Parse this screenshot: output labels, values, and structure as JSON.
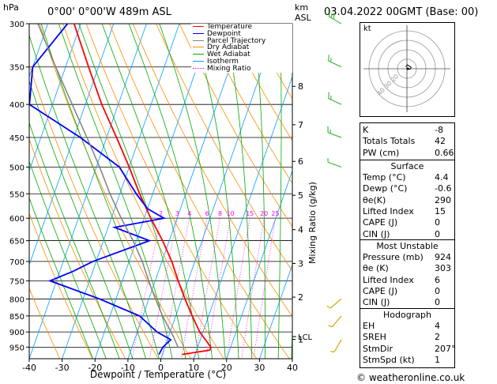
{
  "header": {
    "hpa_label": "hPa",
    "location": "0°00' 0°00'W 489m ASL",
    "km_label": "km",
    "asl_label": "ASL",
    "datetime": "03.04.2022 00GMT (Base: 00)"
  },
  "legend": [
    {
      "label": "Temperature",
      "color": "#ff0000"
    },
    {
      "label": "Dewpoint",
      "color": "#0000ff"
    },
    {
      "label": "Parcel Trajectory",
      "color": "#808080"
    },
    {
      "label": "Dry Adiabat",
      "color": "#ff8c00"
    },
    {
      "label": "Wet Adiabat",
      "color": "#00aa00"
    },
    {
      "label": "Isotherm",
      "color": "#00a0ff"
    },
    {
      "label": "Mixing Ratio",
      "color": "#ff00ff"
    }
  ],
  "hodograph": {
    "label": "kt",
    "rings": [
      "10",
      "20",
      "30",
      "40"
    ]
  },
  "indices": [
    {
      "key": "K",
      "value": "-8"
    },
    {
      "key": "Totals Totals",
      "value": "42"
    },
    {
      "key": "PW (cm)",
      "value": "0.66"
    }
  ],
  "surface": {
    "title": "Surface",
    "rows": [
      {
        "key": "Temp (°C)",
        "value": "4.4"
      },
      {
        "key": "Dewp (°C)",
        "value": "-0.6"
      },
      {
        "key": "θe(K)",
        "value": "290"
      },
      {
        "key": "Lifted Index",
        "value": "15"
      },
      {
        "key": "CAPE (J)",
        "value": "0"
      },
      {
        "key": "CIN (J)",
        "value": "0"
      }
    ]
  },
  "most_unstable": {
    "title": "Most Unstable",
    "rows": [
      {
        "key": "Pressure (mb)",
        "value": "924"
      },
      {
        "key": "θe (K)",
        "value": "303"
      },
      {
        "key": "Lifted Index",
        "value": "6"
      },
      {
        "key": "CAPE (J)",
        "value": "0"
      },
      {
        "key": "CIN (J)",
        "value": "0"
      }
    ]
  },
  "hodo_table": {
    "title": "Hodograph",
    "rows": [
      {
        "key": "EH",
        "value": "4"
      },
      {
        "key": "SREH",
        "value": "2"
      },
      {
        "key": "StmDir",
        "value": "207°"
      },
      {
        "key": "StmSpd (kt)",
        "value": "1"
      }
    ]
  },
  "copyright": "© weatheronline.co.uk",
  "chart_data": {
    "type": "line",
    "subtype": "skew-T log-P diagram",
    "xlabel": "Dewpoint / Temperature (°C)",
    "ylabel_right": "Mixing Ratio (g/kg)",
    "x_ticks": [
      "-40",
      "-30",
      "-20",
      "-10",
      "0",
      "10",
      "20",
      "30",
      "40"
    ],
    "p_ticks": [
      "300",
      "350",
      "400",
      "450",
      "500",
      "550",
      "600",
      "650",
      "700",
      "750",
      "800",
      "850",
      "900",
      "950"
    ],
    "km_ticks": [
      "1",
      "2",
      "3",
      "4",
      "5",
      "6",
      "7",
      "8"
    ],
    "km_pressures": [
      924,
      795,
      705,
      625,
      553,
      490,
      430,
      375
    ],
    "lcl_label": "LCL",
    "lcl_pressure": 915,
    "mixing_ratio_labels": [
      "2",
      "3",
      "4",
      "6",
      "8",
      "10",
      "15",
      "20",
      "25"
    ],
    "xlim": [
      -40,
      40
    ],
    "plim": [
      300,
      990
    ],
    "series": [
      {
        "name": "Temperature",
        "color": "#ff0000",
        "points": [
          [
            975,
            6
          ],
          [
            960,
            14
          ],
          [
            950,
            14
          ],
          [
            900,
            9
          ],
          [
            850,
            5
          ],
          [
            800,
            1
          ],
          [
            750,
            -3
          ],
          [
            700,
            -7
          ],
          [
            650,
            -12
          ],
          [
            600,
            -18
          ],
          [
            550,
            -24
          ],
          [
            500,
            -30
          ],
          [
            450,
            -37
          ],
          [
            400,
            -45
          ],
          [
            350,
            -53
          ],
          [
            300,
            -62
          ]
        ]
      },
      {
        "name": "Dewpoint",
        "color": "#0000ff",
        "points": [
          [
            975,
            -1
          ],
          [
            950,
            -0.6
          ],
          [
            925,
            1
          ],
          [
            900,
            -4
          ],
          [
            850,
            -11
          ],
          [
            800,
            -25
          ],
          [
            750,
            -42
          ],
          [
            725,
            -36
          ],
          [
            700,
            -31
          ],
          [
            650,
            -16
          ],
          [
            620,
            -28
          ],
          [
            600,
            -14
          ],
          [
            580,
            -20
          ],
          [
            550,
            -25
          ],
          [
            500,
            -33
          ],
          [
            450,
            -48
          ],
          [
            400,
            -67
          ],
          [
            350,
            -70
          ],
          [
            300,
            -64
          ]
        ]
      },
      {
        "name": "Parcel Trajectory",
        "color": "#808080",
        "points": [
          [
            950,
            4
          ],
          [
            915,
            1.5
          ],
          [
            850,
            -4
          ],
          [
            800,
            -8
          ],
          [
            750,
            -12
          ],
          [
            700,
            -16
          ],
          [
            650,
            -21
          ],
          [
            600,
            -27
          ],
          [
            550,
            -33
          ],
          [
            500,
            -39
          ],
          [
            450,
            -46
          ],
          [
            400,
            -54
          ],
          [
            350,
            -63
          ],
          [
            300,
            -73
          ]
        ]
      }
    ],
    "wind_barbs": [
      {
        "p": 300,
        "dir": 300,
        "spd": 15
      },
      {
        "p": 350,
        "dir": 295,
        "spd": 10
      },
      {
        "p": 400,
        "dir": 295,
        "spd": 10
      },
      {
        "p": 450,
        "dir": 290,
        "spd": 10
      },
      {
        "p": 500,
        "dir": 290,
        "spd": 5
      },
      {
        "p": 800,
        "dir": 230,
        "spd": 5
      },
      {
        "p": 850,
        "dir": 220,
        "spd": 5
      },
      {
        "p": 925,
        "dir": 210,
        "spd": 5
      }
    ],
    "hodograph_points": [
      [
        0.4,
        -0.2
      ],
      [
        1.0,
        0.3
      ],
      [
        1.4,
        0.1
      ],
      [
        1.8,
        -0.6
      ],
      [
        0.2,
        -1.6
      ],
      [
        -0.5,
        -0.8
      ]
    ]
  }
}
